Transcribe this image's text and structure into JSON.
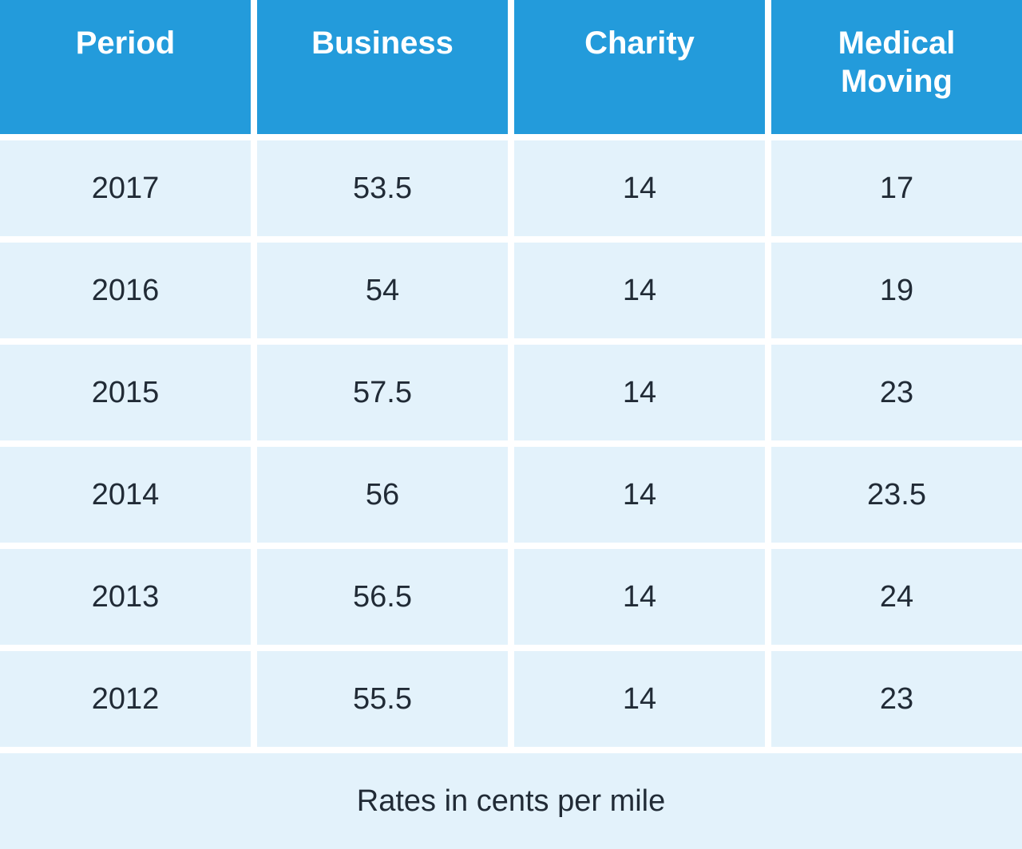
{
  "table": {
    "columns": [
      "Period",
      "Business",
      "Charity",
      "Medical\nMoving"
    ],
    "rows": [
      [
        "2017",
        "53.5",
        "14",
        "17"
      ],
      [
        "2016",
        "54",
        "14",
        "19"
      ],
      [
        "2015",
        "57.5",
        "14",
        "23"
      ],
      [
        "2014",
        "56",
        "14",
        "23.5"
      ],
      [
        "2013",
        "56.5",
        "14",
        "24"
      ],
      [
        "2012",
        "55.5",
        "14",
        "23"
      ]
    ],
    "footnote": "Rates in cents per mile"
  },
  "chart_data": {
    "type": "table",
    "title": "",
    "columns": [
      "Period",
      "Business",
      "Charity",
      "Medical Moving"
    ],
    "rows": [
      [
        "2017",
        53.5,
        14,
        17
      ],
      [
        "2016",
        54,
        14,
        19
      ],
      [
        "2015",
        57.5,
        14,
        23
      ],
      [
        "2014",
        56,
        14,
        23.5
      ],
      [
        "2013",
        56.5,
        14,
        24
      ],
      [
        "2012",
        55.5,
        14,
        23
      ]
    ],
    "note": "Rates in cents per mile",
    "units": "cents per mile"
  },
  "colors": {
    "header_bg": "#239BDB",
    "header_text": "#FFFFFF",
    "cell_bg": "#E3F2FB",
    "cell_text": "#212B36",
    "divider": "#FFFFFF"
  }
}
